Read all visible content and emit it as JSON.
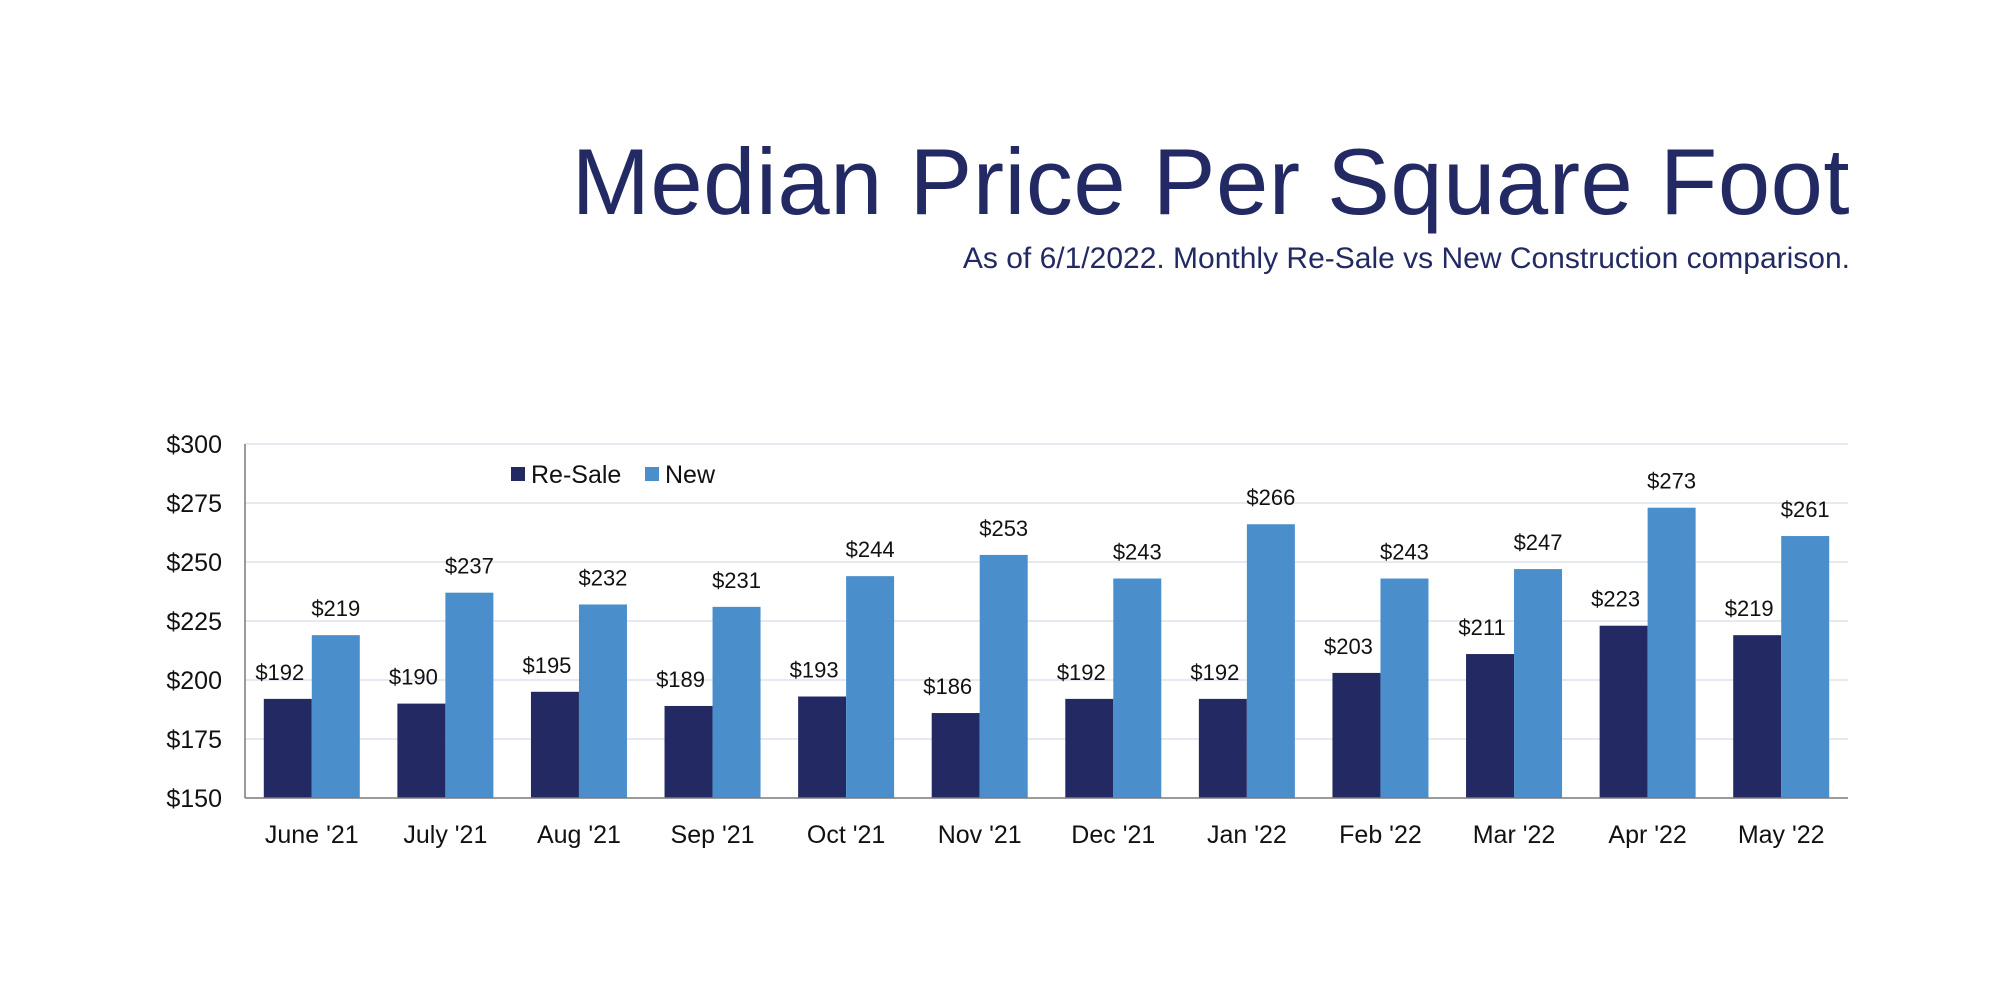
{
  "title": "Median Price Per Square Foot",
  "subtitle": "As of 6/1/2022. Monthly Re-Sale vs New Construction comparison.",
  "colors": {
    "title": "#232a63",
    "resale": "#232a63",
    "new": "#4a8ecb",
    "grid": "#dde1ee",
    "axis": "#7a7a7a"
  },
  "chart_data": {
    "type": "bar",
    "categories": [
      "June '21",
      "July '21",
      "Aug '21",
      "Sep '21",
      "Oct '21",
      "Nov '21",
      "Dec '21",
      "Jan '22",
      "Feb '22",
      "Mar '22",
      "Apr '22",
      "May '22"
    ],
    "series": [
      {
        "name": "Re-Sale",
        "values": [
          192,
          190,
          195,
          189,
          193,
          186,
          192,
          192,
          203,
          211,
          223,
          219
        ],
        "labels": [
          "$192",
          "$190",
          "$195",
          "$189",
          "$193",
          "$186",
          "$192",
          "$192",
          "$203",
          "$211",
          "$223",
          "$219"
        ]
      },
      {
        "name": "New",
        "values": [
          219,
          237,
          232,
          231,
          244,
          253,
          243,
          266,
          243,
          247,
          273,
          261
        ],
        "labels": [
          "$219",
          "$237",
          "$232",
          "$231",
          "$244",
          "$253",
          "$243",
          "$266",
          "$243",
          "$247",
          "$273",
          "$261"
        ]
      }
    ],
    "ylim": [
      150,
      300
    ],
    "yticks": [
      150,
      175,
      200,
      225,
      250,
      275,
      300
    ],
    "ytick_labels": [
      "$150",
      "$175",
      "$200",
      "$225",
      "$250",
      "$275",
      "$300"
    ],
    "xlabel": "",
    "ylabel": "",
    "grid": true,
    "legend": "top-left"
  }
}
